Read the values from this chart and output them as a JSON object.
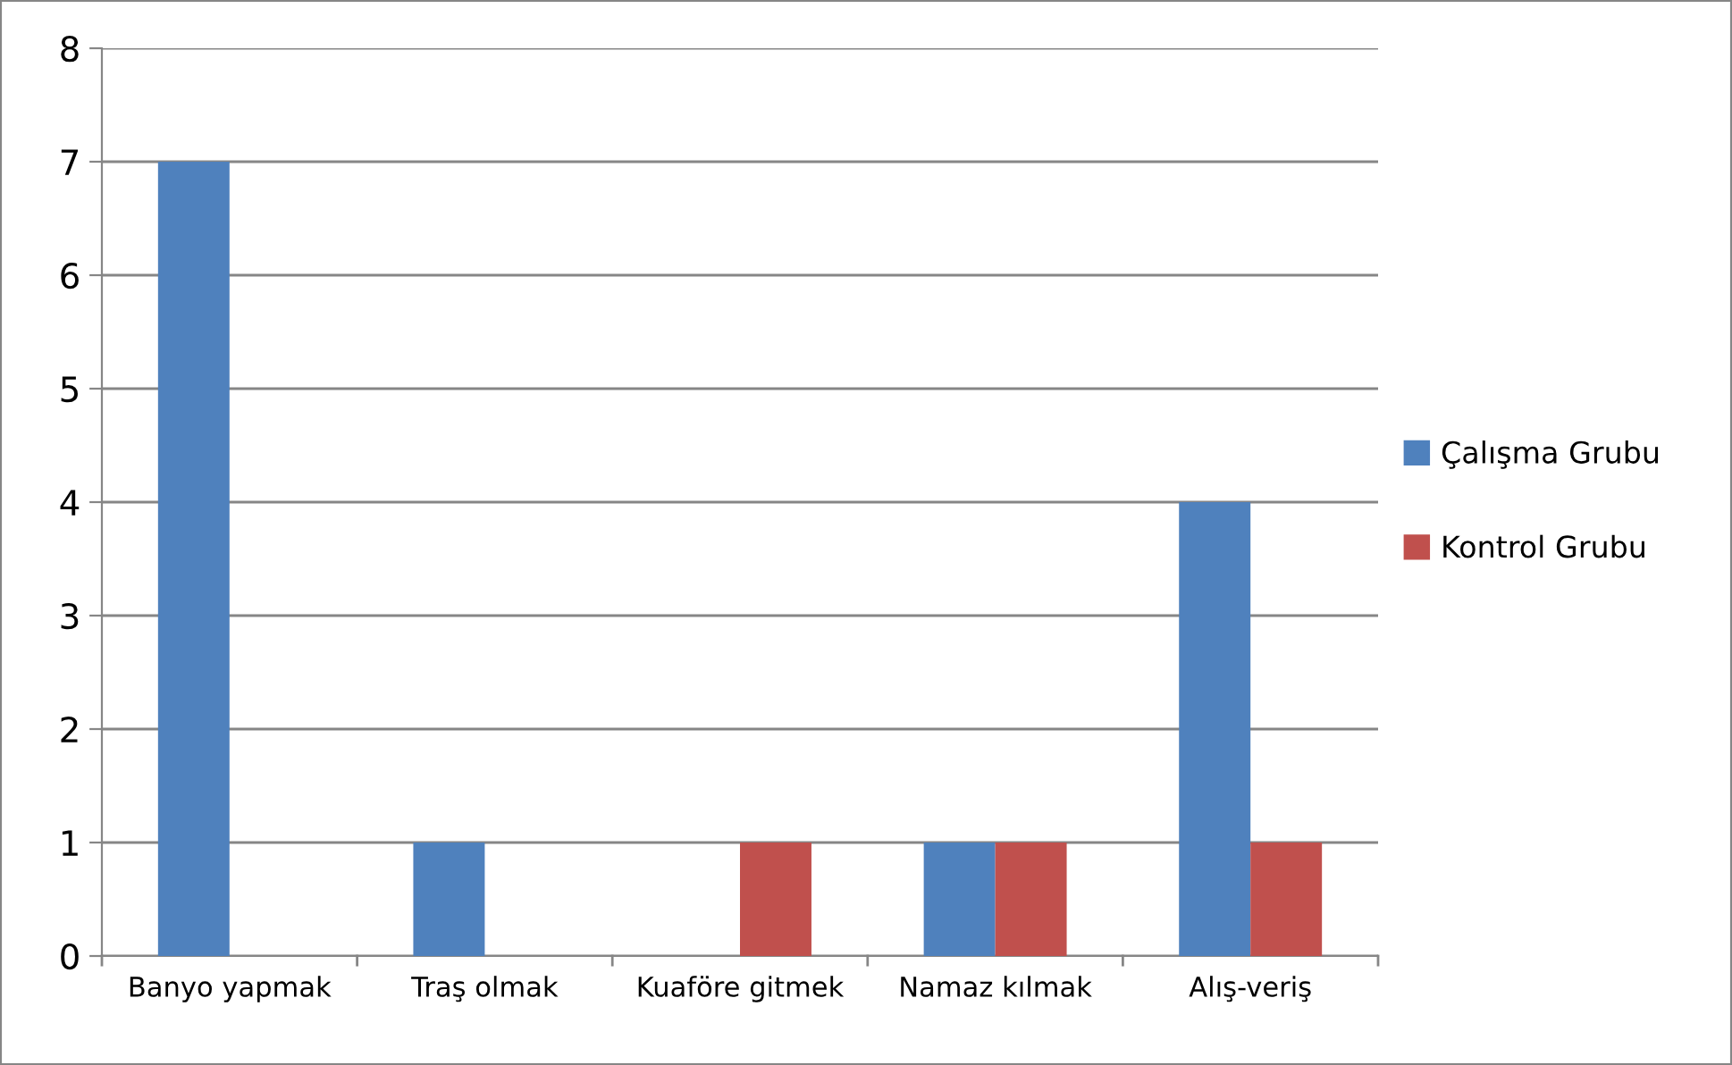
{
  "chart_data": {
    "type": "bar",
    "categories": [
      "Banyo yapmak",
      "Traş olmak",
      "Kuaföre gitmek",
      "Namaz kılmak",
      "Alış-veriş"
    ],
    "series": [
      {
        "name": "Çalışma Grubu",
        "color": "#4f81bd",
        "values": [
          7,
          1,
          0,
          1,
          4
        ]
      },
      {
        "name": "Kontrol Grubu",
        "color": "#c0504d",
        "values": [
          0,
          0,
          1,
          1,
          1
        ]
      }
    ],
    "ylim": [
      0,
      8
    ],
    "yticks": [
      0,
      1,
      2,
      3,
      4,
      5,
      6,
      7,
      8
    ],
    "grid": "y",
    "legend": "right"
  }
}
